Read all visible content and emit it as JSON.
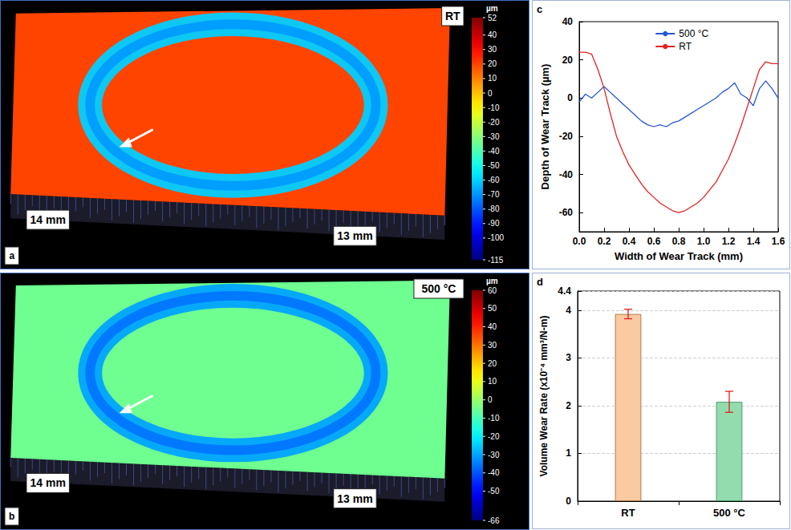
{
  "chart_data": [
    {
      "type": "surface_map",
      "panel": "a",
      "label": "RT",
      "unit": "µm",
      "dimensions": [
        "14 mm",
        "13 mm"
      ],
      "colorbar_lim": [
        -115,
        52
      ],
      "colorbar_ticks": [
        52,
        40,
        30,
        20,
        10,
        0,
        -10,
        -20,
        -30,
        -40,
        -50,
        -60,
        -70,
        -80,
        -90,
        -100,
        -115
      ],
      "surface_level": 20,
      "track_level": -60
    },
    {
      "type": "surface_map",
      "panel": "b",
      "label": "500 °C",
      "unit": "µm",
      "dimensions": [
        "14 mm",
        "13 mm"
      ],
      "colorbar_lim": [
        -66,
        60
      ],
      "colorbar_ticks": [
        60,
        50,
        40,
        30,
        20,
        10,
        0,
        -10,
        -20,
        -30,
        -40,
        -50,
        -66
      ],
      "surface_level": -5,
      "track_level": -30
    },
    {
      "type": "line",
      "panel": "c",
      "x_label": "Width of Wear Track (mm)",
      "y_label": "Depth of Wear Track (µm)",
      "x": [
        0,
        0.05,
        0.1,
        0.15,
        0.2,
        0.25,
        0.3,
        0.35,
        0.4,
        0.45,
        0.5,
        0.55,
        0.6,
        0.65,
        0.7,
        0.75,
        0.8,
        0.85,
        0.9,
        0.95,
        1.0,
        1.05,
        1.1,
        1.15,
        1.2,
        1.25,
        1.3,
        1.35,
        1.4,
        1.45,
        1.5,
        1.55,
        1.6
      ],
      "series": [
        {
          "name": "500 °C",
          "color": "#2456d6",
          "values": [
            -2,
            2,
            0,
            3,
            6,
            3,
            0,
            -3,
            -6,
            -9,
            -12,
            -14,
            -15,
            -14,
            -15,
            -13,
            -12,
            -10,
            -8,
            -6,
            -4,
            -2,
            0,
            3,
            5,
            8,
            2,
            0,
            -4,
            5,
            9,
            5,
            0
          ]
        },
        {
          "name": "RT",
          "color": "#e02424",
          "values": [
            24,
            24,
            23,
            15,
            5,
            -8,
            -20,
            -28,
            -35,
            -40,
            -45,
            -49,
            -52,
            -55,
            -57,
            -59,
            -60,
            -59,
            -57,
            -55,
            -52,
            -48,
            -44,
            -38,
            -32,
            -24,
            -15,
            -5,
            5,
            15,
            19,
            18,
            18
          ]
        }
      ],
      "xlim": [
        0,
        1.6
      ],
      "xticks": [
        {
          "value": 0,
          "label": "0.0"
        },
        {
          "value": 0.2,
          "label": "0.2"
        },
        {
          "value": 0.4,
          "label": "0.4"
        },
        {
          "value": 0.6,
          "label": "0.6"
        },
        {
          "value": 0.8,
          "label": "0.8"
        },
        {
          "value": 1,
          "label": "1.0"
        },
        {
          "value": 1.2,
          "label": "1.2"
        },
        {
          "value": 1.4,
          "label": "1.4"
        },
        {
          "value": 1.6,
          "label": "1.6"
        }
      ],
      "ylim": [
        -70,
        40
      ],
      "yticks": [
        -60,
        -40,
        -20,
        0,
        20,
        40
      ],
      "grid": false,
      "legend": "upper center"
    },
    {
      "type": "bar",
      "panel": "d",
      "y_label": "Volume Wear Rate (x10⁻⁴ mm³/N-m)",
      "categories": [
        "RT",
        "500 °C"
      ],
      "values": [
        3.92,
        2.08
      ],
      "errors": [
        0.1,
        0.22
      ],
      "colors": [
        "#fbcaa0",
        "#93dcae"
      ],
      "ylim": [
        0,
        4.4
      ],
      "yticks": [
        0,
        1,
        2,
        3,
        4
      ],
      "grid": true
    }
  ]
}
